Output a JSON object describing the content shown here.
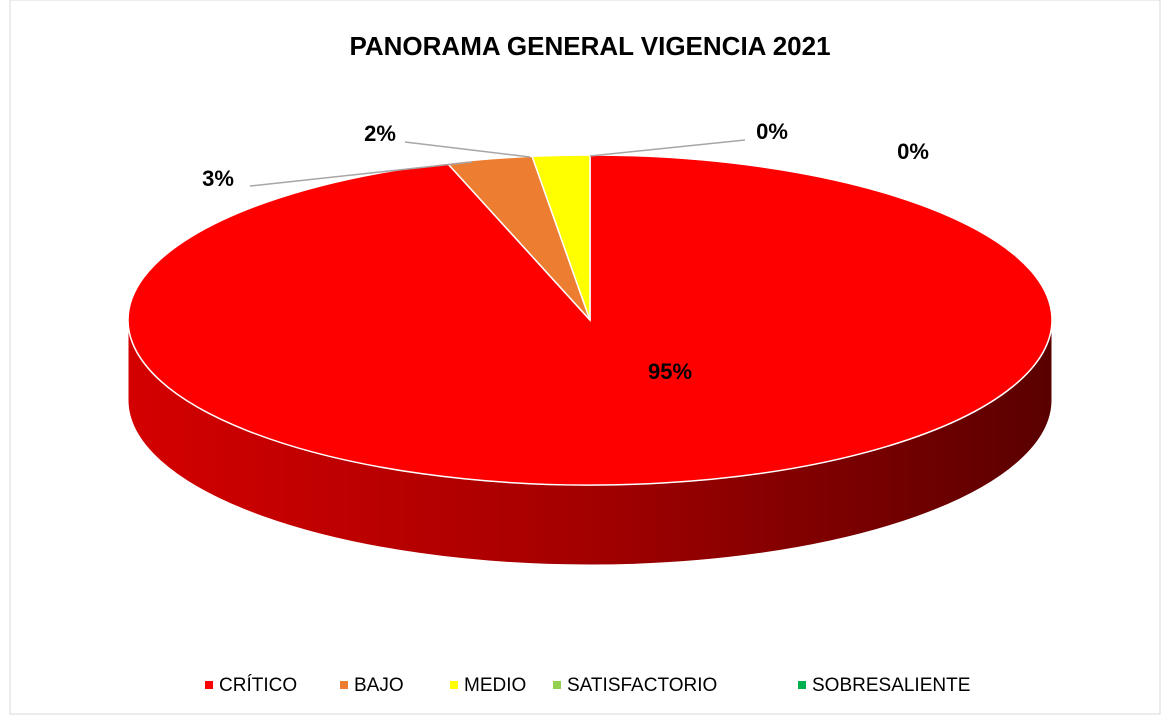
{
  "chart_data": {
    "type": "pie",
    "title": "PANORAMA GENERAL VIGENCIA 2021",
    "categories": [
      "CRÍTICO",
      "BAJO",
      "MEDIO",
      "SATISFACTORIO",
      "SOBRESALIENTE"
    ],
    "values": [
      95,
      3,
      2,
      0,
      0
    ],
    "value_labels": [
      "95%",
      "3%",
      "2%",
      "0%",
      "0%"
    ],
    "colors": [
      "#ff0000",
      "#ed7d31",
      "#ffff00",
      "#92d050",
      "#00b050"
    ],
    "legend": "bottom"
  }
}
